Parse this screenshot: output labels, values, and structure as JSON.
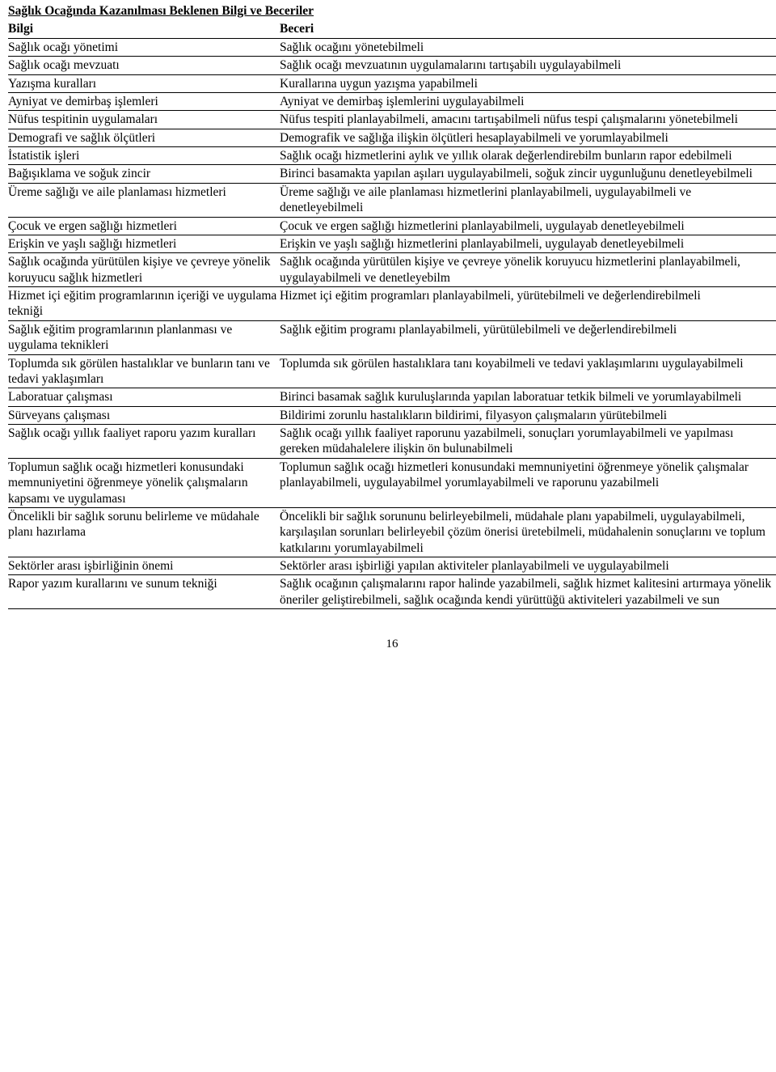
{
  "title": "Sağlık Ocağında Kazanılması Beklenen Bilgi ve Beceriler",
  "header": {
    "col1": "Bilgi",
    "col2": "Beceri"
  },
  "rows": [
    {
      "c1": "Sağlık ocağı yönetimi",
      "c2": "Sağlık ocağını yönetebilmeli"
    },
    {
      "c1": "Sağlık ocağı mevzuatı",
      "c2": "Sağlık   ocağı   mevzuatının   uygulamalarını   tartışabilı uygulayabilmeli"
    },
    {
      "c1": "Yazışma kuralları",
      "c2": "Kurallarına uygun yazışma yapabilmeli"
    },
    {
      "c1": "Ayniyat ve demirbaş işlemleri",
      "c2": "Ayniyat ve demirbaş işlemlerini uygulayabilmeli"
    },
    {
      "c1": "Nüfus tespitinin uygulamaları",
      "c2": "Nüfus tespiti planlayabilmeli, amacını tartışabilmeli nüfus tespi çalışmalarını yönetebilmeli"
    },
    {
      "c1": "Demografi ve sağlık ölçütleri",
      "c2": "Demografik ve sağlığa ilişkin ölçütleri hesaplayabilmeli ve yorumlayabilmeli"
    },
    {
      "c1": "İstatistik işleri",
      "c2": "Sağlık ocağı hizmetlerini aylık ve yıllık olarak değerlendirebilm bunların rapor edebilmeli"
    },
    {
      "c1": "Bağışıklama ve soğuk zincir",
      "c2": "Birinci basamakta yapılan aşıları uygulayabilmeli, soğuk zincir uygunluğunu denetleyebilmeli"
    },
    {
      "c1": "Üreme sağlığı ve aile planlaması hizmetleri",
      "c2": "Üreme sağlığı ve aile planlaması hizmetlerini planlayabilmeli, uygulayabilmeli ve denetleyebilmeli"
    },
    {
      "c1": "Çocuk ve ergen sağlığı hizmetleri",
      "c2": "Çocuk ve ergen sağlığı hizmetlerini planlayabilmeli, uygulayab denetleyebilmeli"
    },
    {
      "c1": "Erişkin ve yaşlı sağlığı hizmetleri",
      "c2": "Erişkin ve yaşlı sağlığı hizmetlerini planlayabilmeli, uygulayab denetleyebilmeli"
    },
    {
      "c1": "Sağlık ocağında yürütülen kişiye ve çevreye yönelik koruyucu sağlık hizmetleri",
      "c2": "Sağlık ocağında yürütülen kişiye ve çevreye yönelik koruyucu hizmetlerini planlayabilmeli, uygulayabilmeli ve denetleyebilm"
    },
    {
      "c1": "Hizmet içi eğitim programlarının içeriği ve uygulama tekniği",
      "c2": "Hizmet içi eğitim programları planlayabilmeli, yürütebilmeli ve değerlendirebilmeli"
    },
    {
      "c1": "Sağlık eğitim programlarının planlanması ve uygulama teknikleri",
      "c2": "Sağlık eğitim programı planlayabilmeli, yürütülebilmeli ve değerlendirebilmeli"
    },
    {
      "c1": "Toplumda sık görülen hastalıklar ve bunların tanı ve tedavi yaklaşımları",
      "c2": "Toplumda sık görülen hastalıklara tanı koyabilmeli ve tedavi yaklaşımlarını uygulayabilmeli"
    },
    {
      "c1": "Laboratuar çalışması",
      "c2": "Birinci basamak sağlık kuruluşlarında yapılan laboratuar tetkik bilmeli ve yorumlayabilmeli"
    },
    {
      "c1": "Sürveyans çalışması",
      "c2": "Bildirimi zorunlu hastalıkların bildirimi, filyasyon çalışmaların yürütebilmeli"
    },
    {
      "c1": "Sağlık ocağı yıllık faaliyet raporu yazım kuralları",
      "c2": "Sağlık ocağı yıllık faaliyet raporunu yazabilmeli, sonuçları yorumlayabilmeli ve yapılması gereken müdahalelere ilişkin ön bulunabilmeli"
    },
    {
      "c1": "Toplumun sağlık ocağı hizmetleri konusundaki memnuniyetini öğrenmeye yönelik çalışmaların kapsamı ve uygulaması",
      "c2": "Toplumun sağlık ocağı hizmetleri konusundaki memnuniyetini öğrenmeye yönelik çalışmalar planlayabilmeli, uygulayabilmel yorumlayabilmeli ve raporunu yazabilmeli"
    },
    {
      "c1": "Öncelikli bir sağlık sorunu belirleme ve müdahale planı hazırlama",
      "c2": "Öncelikli bir sağlık sorununu belirleyebilmeli, müdahale planı yapabilmeli, uygulayabilmeli, karşılaşılan sorunları belirleyebil çözüm önerisi üretebilmeli, müdahalenin sonuçlarını ve toplum katkılarını yorumlayabilmeli"
    },
    {
      "c1": "Sektörler arası işbirliğinin önemi",
      "c2": "Sektörler arası işbirliği yapılan aktiviteler planlayabilmeli ve uygulayabilmeli"
    },
    {
      "c1": "Rapor yazım kurallarını ve sunum tekniği",
      "c2": "Sağlık ocağının çalışmalarını rapor halinde yazabilmeli, sağlık hizmet kalitesini artırmaya yönelik öneriler geliştirebilmeli, sağlık ocağında kendi yürüttüğü aktiviteleri yazabilmeli ve sun"
    }
  ],
  "pageNumber": "16"
}
